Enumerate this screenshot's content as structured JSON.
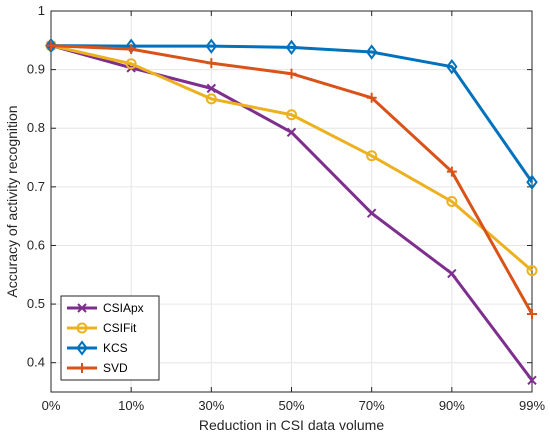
{
  "chart_data": {
    "type": "line",
    "categories": [
      "0%",
      "10%",
      "30%",
      "50%",
      "70%",
      "90%",
      "99%"
    ],
    "xlabel": "Reduction in CSI data volume",
    "ylabel": "Accuracy of activity recognition",
    "ylim": [
      0.35,
      1.0
    ],
    "yticks": [
      "0.4",
      "0.5",
      "0.6",
      "0.7",
      "0.8",
      "0.9",
      "1"
    ],
    "ytick_values": [
      0.4,
      0.5,
      0.6,
      0.7,
      0.8,
      0.9,
      1.0
    ],
    "grid": true,
    "legend_position": "bottom-left",
    "series": [
      {
        "name": "CSIApx",
        "color": "#7E2F8E",
        "marker": "x",
        "values": [
          0.941,
          0.903,
          0.868,
          0.793,
          0.655,
          0.552,
          0.37
        ]
      },
      {
        "name": "CSIFit",
        "color": "#EDB120",
        "marker": "circle",
        "values": [
          0.941,
          0.91,
          0.85,
          0.823,
          0.753,
          0.675,
          0.557
        ]
      },
      {
        "name": "KCS",
        "color": "#0072BD",
        "marker": "diamond",
        "values": [
          0.941,
          0.94,
          0.94,
          0.938,
          0.93,
          0.905,
          0.708
        ]
      },
      {
        "name": "SVD",
        "color": "#D95319",
        "marker": "plus",
        "values": [
          0.941,
          0.935,
          0.911,
          0.893,
          0.852,
          0.726,
          0.483
        ]
      }
    ]
  }
}
